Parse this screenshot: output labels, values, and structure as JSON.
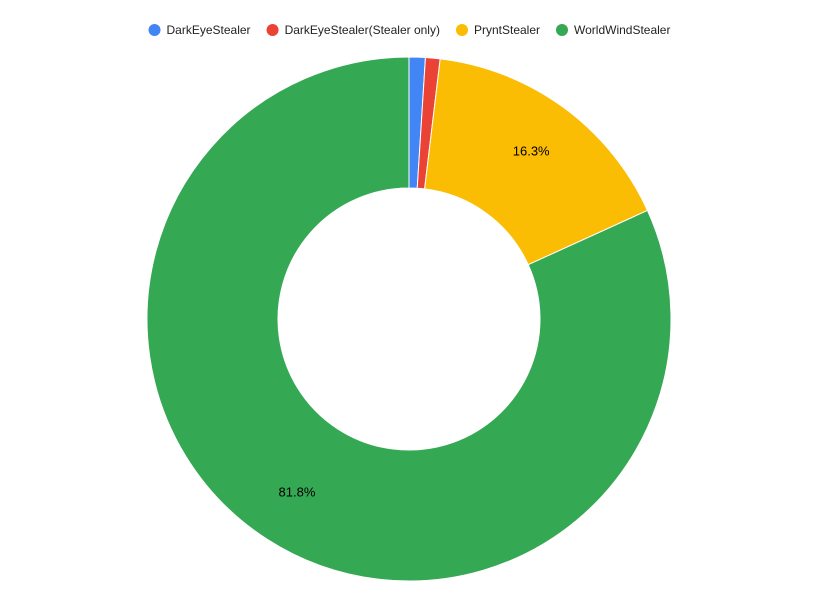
{
  "chart_data": {
    "type": "donut",
    "categories": [
      "DarkEyeStealer",
      "DarkEyeStealer(Stealer only)",
      "PryntStealer",
      "WorldWindStealer"
    ],
    "values": [
      1.0,
      0.9,
      16.3,
      81.8
    ],
    "value_labels": [
      null,
      null,
      "16.3%",
      "81.8%"
    ],
    "colors": [
      "#4285f4",
      "#ea4335",
      "#fbbc04",
      "#34a853"
    ],
    "legend": "top"
  }
}
